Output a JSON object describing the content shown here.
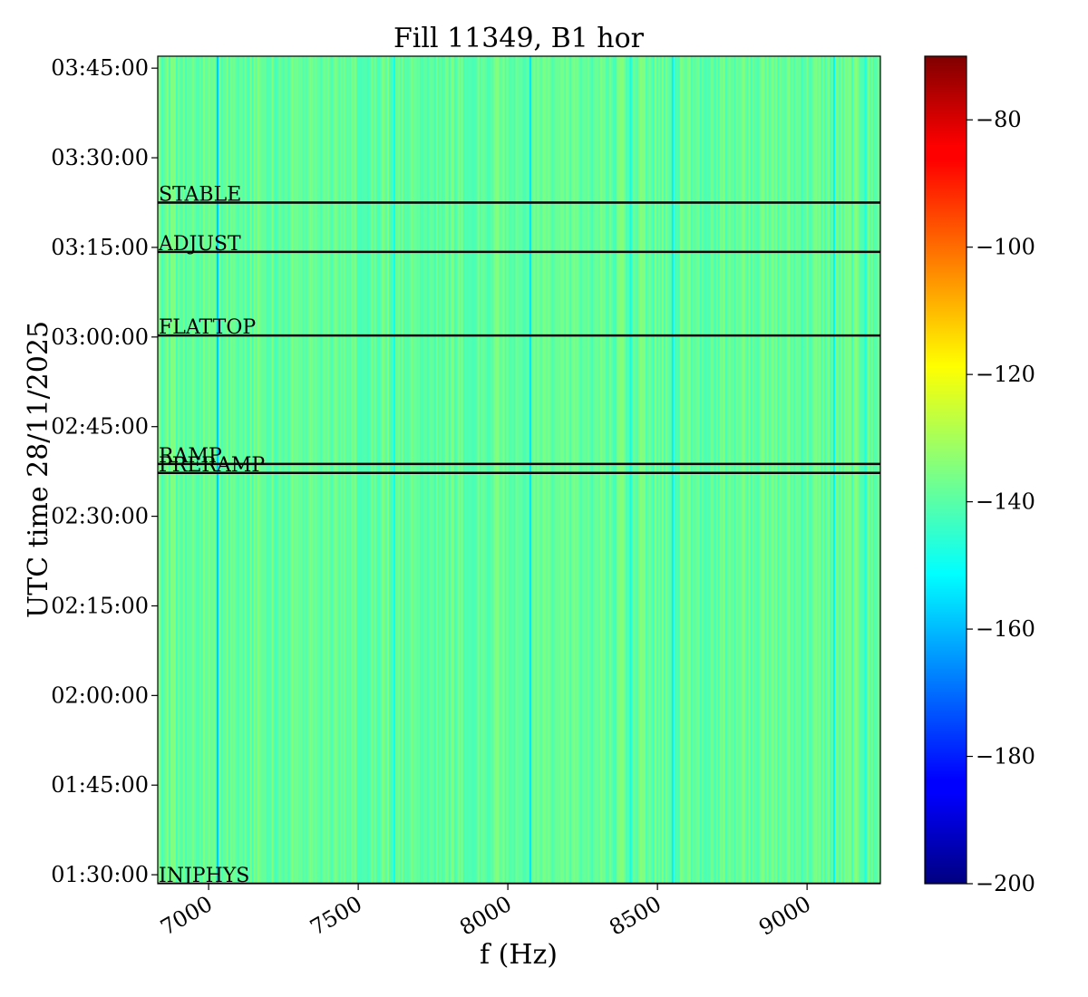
{
  "chart_data": {
    "type": "heatmap",
    "title": "Fill 11349, B1 hor",
    "xlabel": "f (Hz)",
    "ylabel": "UTC time 28/11/2025",
    "xlim": [
      6830,
      9245
    ],
    "ylim": [
      "01:28:30",
      "03:47:00"
    ],
    "x_ticks": [
      7000,
      7500,
      8000,
      8500,
      9000
    ],
    "x_tick_labels": [
      "7000",
      "7500",
      "8000",
      "8500",
      "9000"
    ],
    "y_ticks": [
      "01:30:00",
      "01:45:00",
      "02:00:00",
      "02:15:00",
      "02:30:00",
      "02:45:00",
      "03:00:00",
      "03:15:00",
      "03:30:00",
      "03:45:00"
    ],
    "y_tick_labels": [
      "01:30:00",
      "01:45:00",
      "02:00:00",
      "02:15:00",
      "02:30:00",
      "02:45:00",
      "03:00:00",
      "03:15:00",
      "03:30:00",
      "03:45:00"
    ],
    "colormap": "jet",
    "colorbar": {
      "range": [
        -200,
        -70
      ],
      "ticks": [
        -80,
        -100,
        -120,
        -140,
        -160,
        -180,
        -200
      ],
      "tick_labels": [
        "−80",
        "−100",
        "−120",
        "−140",
        "−160",
        "−180",
        "−200"
      ]
    },
    "background_level": -139,
    "dark_lines": [
      {
        "x": 7030,
        "value": -158
      },
      {
        "x": 7620,
        "value": -150
      },
      {
        "x": 8075,
        "value": -154
      },
      {
        "x": 8410,
        "value": -150
      },
      {
        "x": 8550,
        "value": -153
      },
      {
        "x": 9090,
        "value": -152
      },
      {
        "x": 9195,
        "value": -148
      }
    ],
    "events": [
      {
        "label": "STABLE",
        "time": "03:22:30"
      },
      {
        "label": "ADJUST",
        "time": "03:14:15"
      },
      {
        "label": "FLATTOP",
        "time": "03:00:15"
      },
      {
        "label": "RAMP",
        "time": "02:38:45"
      },
      {
        "label": "PRERAMP",
        "time": "02:37:15"
      },
      {
        "label": "INJPHYS",
        "time": "01:28:30"
      }
    ],
    "grid": false,
    "legend": "none"
  }
}
